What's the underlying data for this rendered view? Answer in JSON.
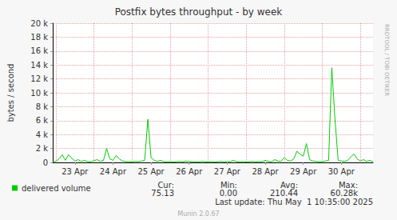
{
  "chart_data": {
    "type": "line",
    "title": "Postfix bytes throughput - by week",
    "y_label": "bytes / second",
    "categories": [
      null,
      null,
      null,
      null,
      null,
      null,
      null,
      "23 Apr",
      null,
      null,
      null,
      null,
      null,
      null,
      null,
      null,
      null,
      null,
      null,
      "24 Apr",
      null,
      null,
      null,
      null,
      null,
      null,
      null,
      null,
      null,
      null,
      null,
      "25 Apr",
      null,
      null,
      null,
      null,
      null,
      null,
      null,
      null,
      null,
      null,
      null,
      "26 Apr",
      null,
      null,
      null,
      null,
      null,
      null,
      null,
      null,
      null,
      null,
      null,
      "27 Apr",
      null,
      null,
      null,
      null,
      null,
      null,
      null,
      null,
      null,
      null,
      null,
      "28 Apr",
      null,
      null,
      null,
      null,
      null,
      null,
      null,
      null,
      null,
      null,
      null,
      "29 Apr",
      null,
      null,
      null,
      null,
      null,
      null,
      null,
      null,
      null,
      null,
      null,
      "30 Apr",
      null,
      null,
      null,
      null,
      null,
      null,
      null,
      null,
      null,
      null
    ],
    "series": [
      {
        "name": "delivered volume",
        "color": "#00cc00",
        "values": [
          90,
          150,
          500,
          1100,
          300,
          1100,
          600,
          200,
          400,
          150,
          300,
          120,
          100,
          250,
          400,
          150,
          300,
          2000,
          500,
          300,
          1000,
          500,
          200,
          120,
          100,
          80,
          150,
          100,
          200,
          300,
          6200,
          700,
          300,
          150,
          300,
          100,
          80,
          120,
          60,
          100,
          150,
          80,
          200,
          120,
          80,
          100,
          60,
          150,
          100,
          80,
          120,
          60,
          100,
          150,
          80,
          120,
          100,
          300,
          100,
          80,
          120,
          60,
          100,
          150,
          80,
          120,
          100,
          300,
          150,
          100,
          400,
          200,
          150,
          700,
          300,
          200,
          500,
          1600,
          1200,
          900,
          2700,
          400,
          200,
          150,
          100,
          120,
          200,
          300,
          13600,
          6200,
          300,
          200,
          150,
          300,
          800,
          1200,
          500,
          200,
          400,
          150,
          300,
          100
        ]
      }
    ],
    "ylim": [
      0,
      20000
    ],
    "yticks": [
      0,
      {
        "value": 2000,
        "label": "2 k"
      },
      {
        "value": 4000,
        "label": "4 k"
      },
      {
        "value": 6000,
        "label": "6 k"
      },
      {
        "value": 8000,
        "label": "8 k"
      },
      {
        "value": 10000,
        "label": "10 k"
      },
      {
        "value": 12000,
        "label": "12 k"
      },
      {
        "value": 14000,
        "label": "14 k"
      },
      {
        "value": 16000,
        "label": "16 k"
      },
      {
        "value": 18000,
        "label": "18 k"
      },
      {
        "value": 20000,
        "label": "20 k"
      }
    ],
    "grid": true,
    "legend": "bottom-left",
    "stats": [
      {
        "label": "Cur:",
        "value": 75.13
      },
      {
        "label": "Min:",
        "value": 0,
        "value_label": "0.00"
      },
      {
        "label": "Avg:",
        "value": 210.44
      },
      {
        "label": "Max:",
        "value": 60280,
        "value_label": "60.28k"
      }
    ],
    "last_update": "Last update: Thu May  1 10:35:00 2025",
    "footer": "Munin 2.0.67",
    "side_text": "RRDTOOL / TOBI OETIKER"
  }
}
